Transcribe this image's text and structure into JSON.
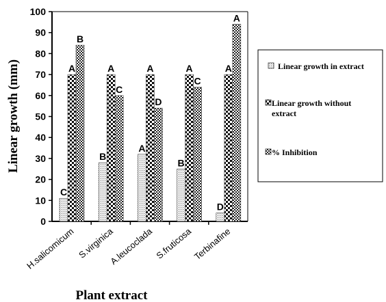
{
  "chart_data": {
    "type": "bar",
    "categories": [
      "H.salicomicum",
      "S.virginica",
      "A.leucoclada",
      "S.fruticosa",
      "Terbinafine"
    ],
    "series": [
      {
        "name": "Linear growth in extract",
        "values": [
          11,
          28,
          32,
          25,
          4
        ],
        "labels": [
          "C",
          "B",
          "A",
          "B",
          "D"
        ]
      },
      {
        "name": "Linear growth without extract",
        "values": [
          70,
          70,
          70,
          70,
          70
        ],
        "labels": [
          "A",
          "A",
          "A",
          "A",
          "A"
        ]
      },
      {
        "name": "% Inhibition",
        "values": [
          84,
          60,
          54,
          64,
          94
        ],
        "labels": [
          "B",
          "C",
          "D",
          "C",
          "A"
        ]
      }
    ],
    "legend_lines": [
      [
        "Linear growth in extract"
      ],
      [
        "Linear growth without",
        "extract"
      ],
      [
        "% Inhibition"
      ]
    ],
    "xlabel": "Plant extract",
    "ylabel": "Linear growth (mm)",
    "ylim": [
      0,
      100
    ],
    "yticks": [
      0,
      10,
      20,
      30,
      40,
      50,
      60,
      70,
      80,
      90,
      100
    ],
    "legend_position": "right",
    "grid": false
  }
}
